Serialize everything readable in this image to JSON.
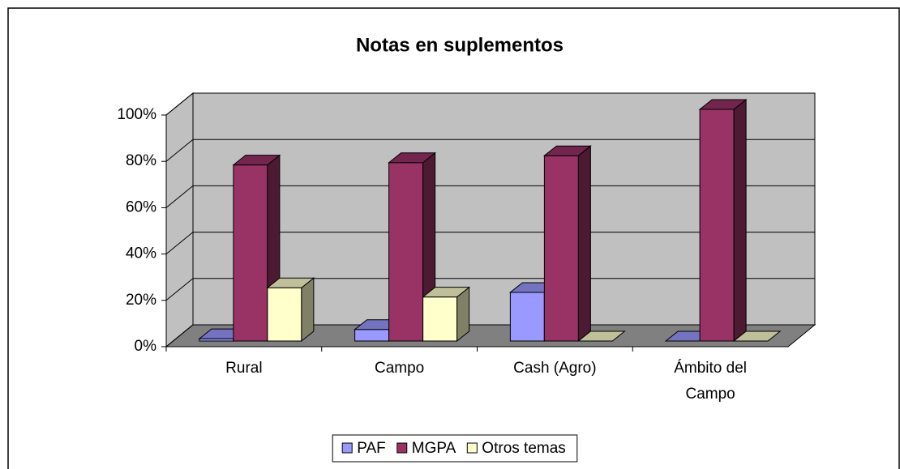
{
  "chart_data": {
    "type": "bar3d",
    "title": "Notas en suplementos",
    "categories": [
      "Rural",
      "Campo",
      "Cash (Agro)",
      "Ámbito del Campo"
    ],
    "series": [
      {
        "name": "PAF",
        "color": "#9999ff",
        "values": [
          1,
          5,
          21,
          0
        ]
      },
      {
        "name": "MGPA",
        "color": "#993366",
        "values": [
          76,
          77,
          80,
          100
        ]
      },
      {
        "name": "Otros temas",
        "color": "#ffffcc",
        "values": [
          23,
          19,
          0,
          0
        ]
      }
    ],
    "ylim": [
      0,
      100
    ],
    "yticks": [
      {
        "value": 0,
        "label": "0%"
      },
      {
        "value": 20,
        "label": "20%"
      },
      {
        "value": 40,
        "label": "40%"
      },
      {
        "value": 60,
        "label": "60%"
      },
      {
        "value": 80,
        "label": "80%"
      },
      {
        "value": 100,
        "label": "100%"
      }
    ],
    "grid": true,
    "legend": "bottom"
  }
}
